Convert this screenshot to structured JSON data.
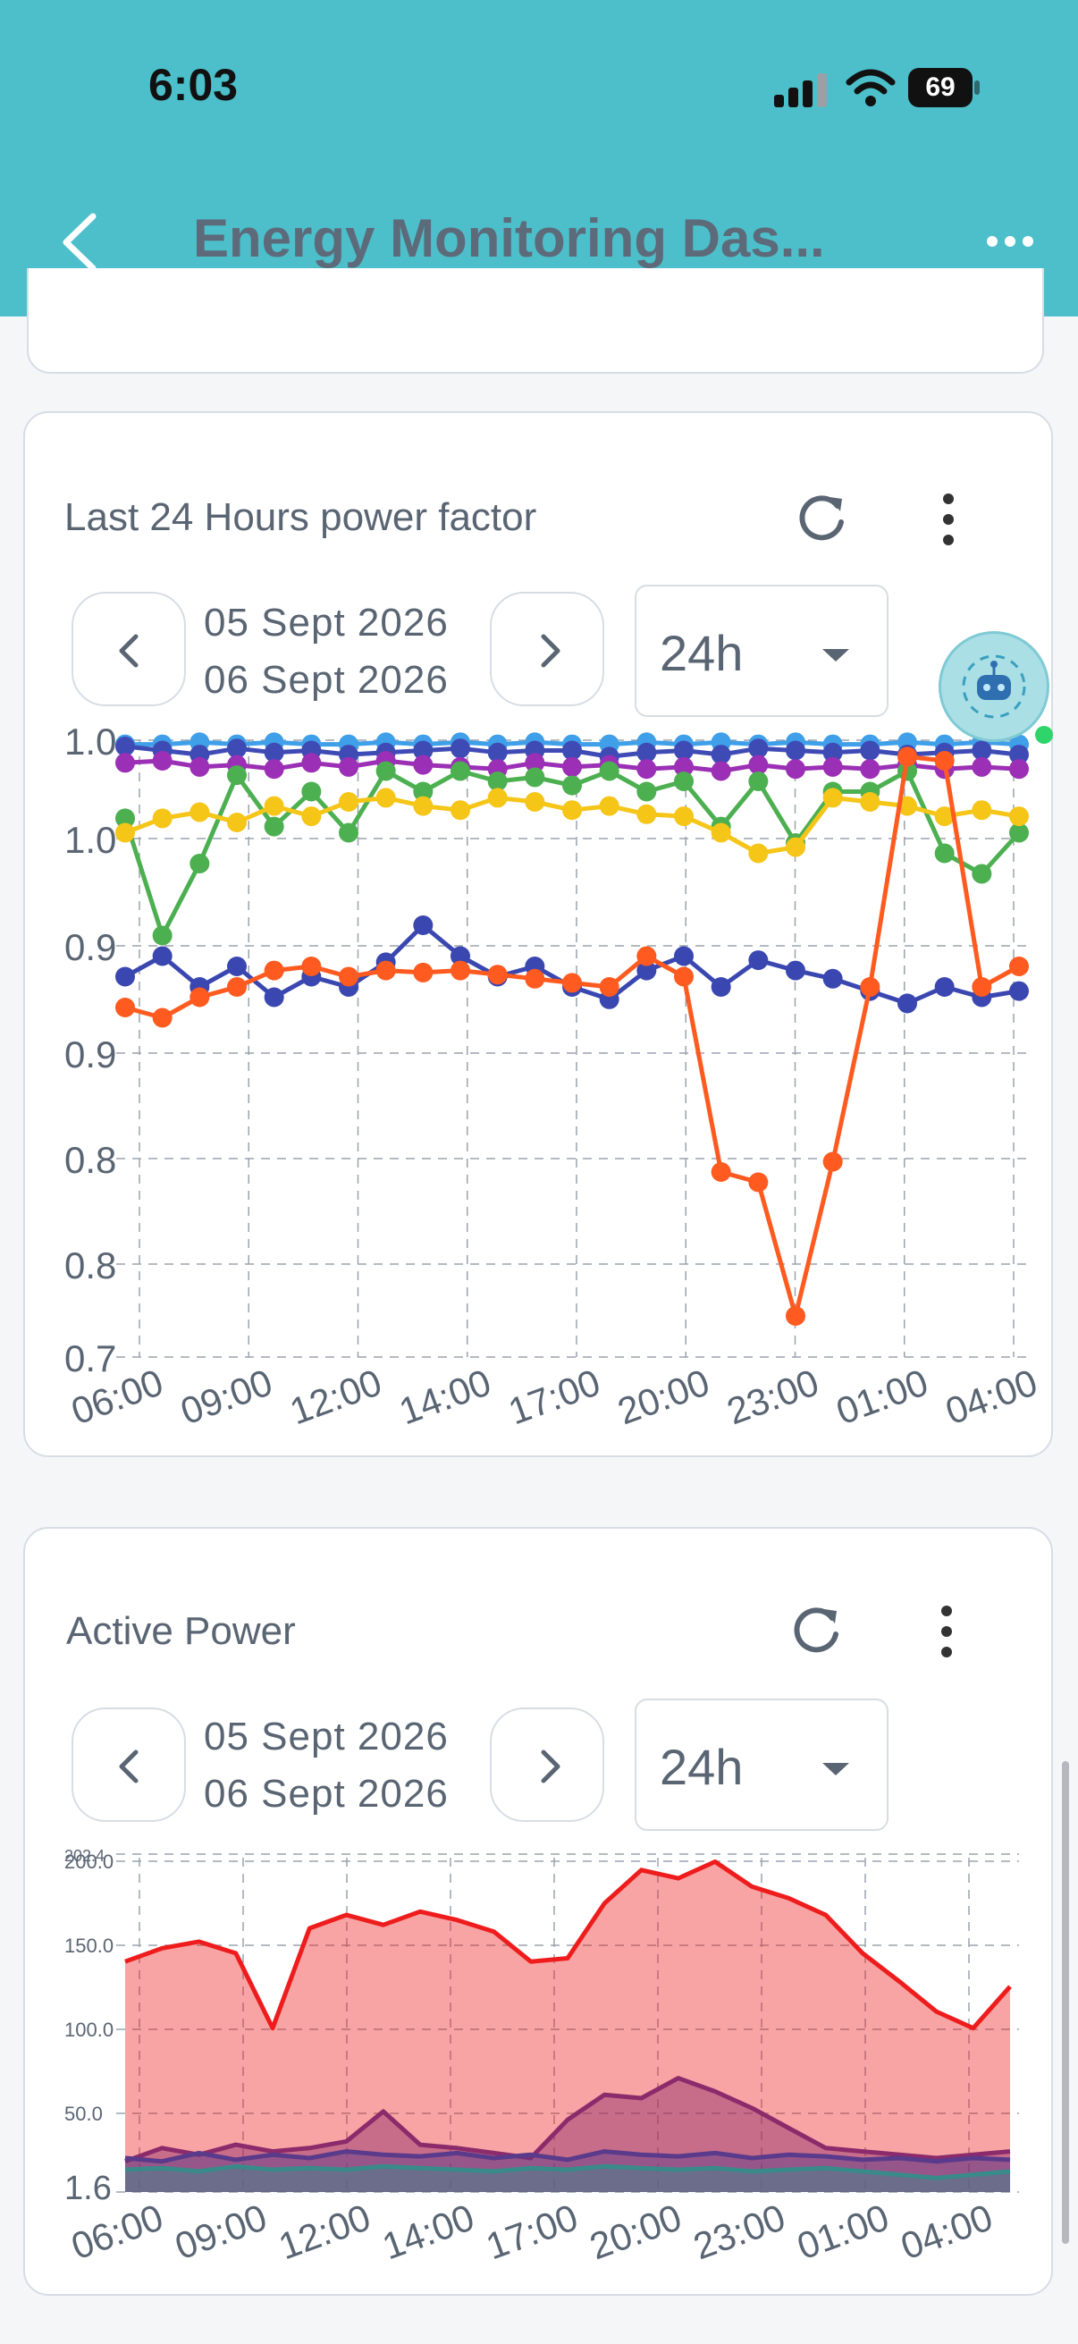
{
  "status": {
    "time": "6:03",
    "battery": "69"
  },
  "app_bar": {
    "title": "Energy Monitoring Das..."
  },
  "cards": [
    {
      "title": "Last 24 Hours power factor",
      "date_from": "05 Sept 2026",
      "date_to": "06 Sept 2026",
      "range": "24h"
    },
    {
      "title": "Active Power",
      "date_from": "05 Sept 2026",
      "date_to": "06 Sept 2026",
      "range": "24h"
    }
  ],
  "colors": {
    "header": "#4dbfca",
    "card_border": "#d7dde4",
    "text": "#5a6573"
  },
  "icons": [
    "back-icon",
    "more-icon",
    "refresh-icon",
    "vertical-dots-icon",
    "chevron-left-icon",
    "chevron-right-icon",
    "caret-down-icon",
    "assistant-robot-icon"
  ],
  "chart_data": [
    {
      "type": "line",
      "title": "Last 24 Hours power factor",
      "x_tick_labels": [
        "06:00",
        "09:00",
        "12:00",
        "14:00",
        "17:00",
        "20:00",
        "23:00",
        "01:00",
        "04:00"
      ],
      "y_tick_labels": [
        "0.7",
        "0.8",
        "0.8",
        "0.9",
        "0.9",
        "1.0",
        "1.0"
      ],
      "ylim": [
        0.7,
        1.0
      ],
      "grid": true,
      "markers": true,
      "series": [
        {
          "color": "#3f9fe8",
          "values": [
            0.998,
            0.998,
            0.999,
            0.998,
            0.999,
            0.998,
            0.998,
            0.999,
            0.998,
            0.999,
            0.998,
            0.999,
            0.998,
            0.998,
            0.999,
            0.998,
            0.999,
            0.998,
            0.999,
            0.998,
            0.998,
            0.999,
            0.998,
            0.999,
            0.998
          ]
        },
        {
          "color": "#3f4bb5",
          "values": [
            0.997,
            0.995,
            0.993,
            0.996,
            0.994,
            0.995,
            0.993,
            0.994,
            0.995,
            0.996,
            0.994,
            0.995,
            0.995,
            0.992,
            0.994,
            0.995,
            0.993,
            0.996,
            0.995,
            0.994,
            0.995,
            0.993,
            0.994,
            0.995,
            0.993
          ]
        },
        {
          "color": "#9b2fb5",
          "values": [
            0.989,
            0.99,
            0.987,
            0.988,
            0.986,
            0.989,
            0.987,
            0.99,
            0.988,
            0.987,
            0.986,
            0.989,
            0.987,
            0.988,
            0.986,
            0.987,
            0.985,
            0.988,
            0.986,
            0.987,
            0.986,
            0.988,
            0.986,
            0.987,
            0.986
          ]
        },
        {
          "color": "#4caf50",
          "values": [
            0.962,
            0.905,
            0.94,
            0.983,
            0.958,
            0.975,
            0.955,
            0.985,
            0.975,
            0.985,
            0.98,
            0.982,
            0.978,
            0.985,
            0.975,
            0.98,
            0.958,
            0.98,
            0.95,
            0.975,
            0.975,
            0.985,
            0.945,
            0.935,
            0.955
          ]
        },
        {
          "color": "#f5c518",
          "values": [
            0.955,
            0.962,
            0.965,
            0.96,
            0.968,
            0.963,
            0.97,
            0.972,
            0.968,
            0.966,
            0.972,
            0.97,
            0.966,
            0.968,
            0.964,
            0.963,
            0.955,
            0.945,
            0.948,
            0.972,
            0.97,
            0.968,
            0.963,
            0.966,
            0.963
          ]
        },
        {
          "color": "#3a47b0",
          "values": [
            0.885,
            0.895,
            0.88,
            0.89,
            0.875,
            0.885,
            0.88,
            0.892,
            0.91,
            0.895,
            0.885,
            0.89,
            0.88,
            0.874,
            0.888,
            0.895,
            0.88,
            0.893,
            0.888,
            0.884,
            0.878,
            0.872,
            0.88,
            0.875,
            0.878
          ]
        },
        {
          "color": "#ff5a1f",
          "values": [
            0.87,
            0.865,
            0.875,
            0.88,
            0.888,
            0.89,
            0.885,
            0.888,
            0.887,
            0.888,
            0.886,
            0.884,
            0.882,
            0.88,
            0.895,
            0.885,
            0.79,
            0.785,
            0.72,
            0.795,
            0.88,
            0.992,
            0.99,
            0.88,
            0.89
          ]
        }
      ]
    },
    {
      "type": "area",
      "title": "Active Power",
      "x_tick_labels": [
        "06:00",
        "09:00",
        "12:00",
        "14:00",
        "17:00",
        "20:00",
        "23:00",
        "01:00",
        "04:00"
      ],
      "y_tick_labels": [
        "1.6",
        "50.0",
        "100.0",
        "150.0",
        "200.0",
        "202.4"
      ],
      "ylim": [
        1.6,
        202.4
      ],
      "grid": true,
      "series": [
        {
          "color": "#ee1c1c",
          "values": [
            140,
            148,
            152,
            145,
            100,
            160,
            168,
            162,
            170,
            165,
            158,
            140,
            142,
            175,
            195,
            190,
            200,
            185,
            178,
            168,
            145,
            128,
            110,
            100,
            125
          ]
        },
        {
          "color": "#8b2b6b",
          "values": [
            20,
            28,
            24,
            30,
            26,
            28,
            32,
            50,
            30,
            28,
            25,
            22,
            45,
            60,
            58,
            70,
            62,
            52,
            40,
            28,
            26,
            24,
            22,
            24,
            26
          ]
        },
        {
          "color": "#5a3a8a",
          "values": [
            22,
            20,
            25,
            21,
            24,
            22,
            26,
            24,
            23,
            25,
            22,
            24,
            21,
            26,
            24,
            23,
            25,
            22,
            24,
            23,
            21,
            22,
            20,
            22,
            21
          ]
        },
        {
          "color": "#3a8a8a",
          "values": [
            15,
            16,
            14,
            17,
            15,
            16,
            15,
            17,
            16,
            15,
            14,
            16,
            15,
            17,
            16,
            15,
            16,
            14,
            15,
            16,
            14,
            12,
            10,
            12,
            14
          ]
        }
      ]
    }
  ]
}
